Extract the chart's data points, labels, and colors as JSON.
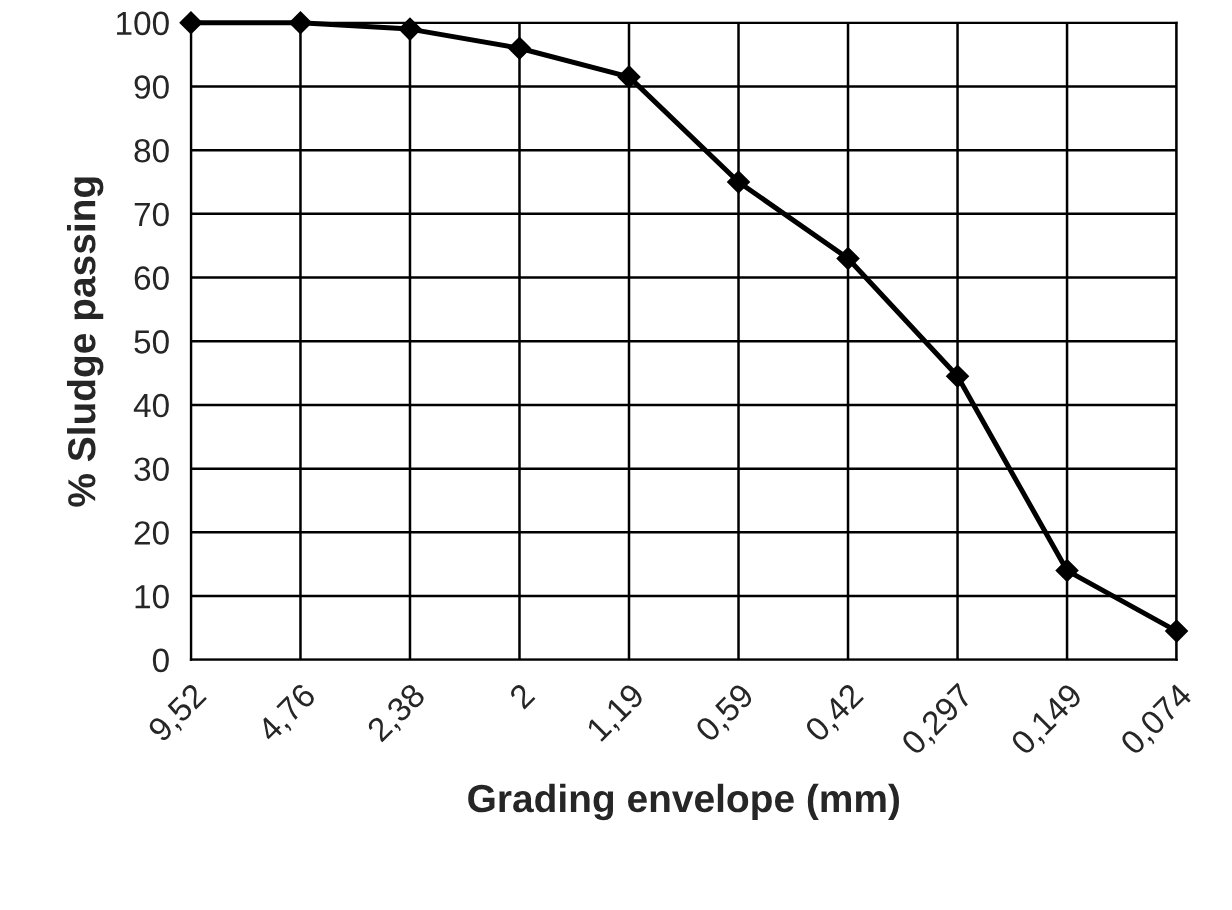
{
  "chart_data": {
    "type": "line",
    "xlabel": "Grading envelope (mm)",
    "ylabel": "% Sludge passing",
    "categories": [
      "9,52",
      "4,76",
      "2,38",
      "2",
      "1,19",
      "0,59",
      "0,42",
      "0,297",
      "0,149",
      "0,074"
    ],
    "series": [
      {
        "color": "#000000",
        "values": [
          100,
          100,
          99,
          96,
          91.5,
          75,
          63,
          44.5,
          14,
          4.5
        ]
      }
    ],
    "ylim": [
      0,
      100
    ],
    "yticks": [
      0,
      10,
      20,
      30,
      40,
      50,
      60,
      70,
      80,
      90,
      100
    ],
    "grid": true,
    "marker": "diamond",
    "line_style": "solid"
  }
}
